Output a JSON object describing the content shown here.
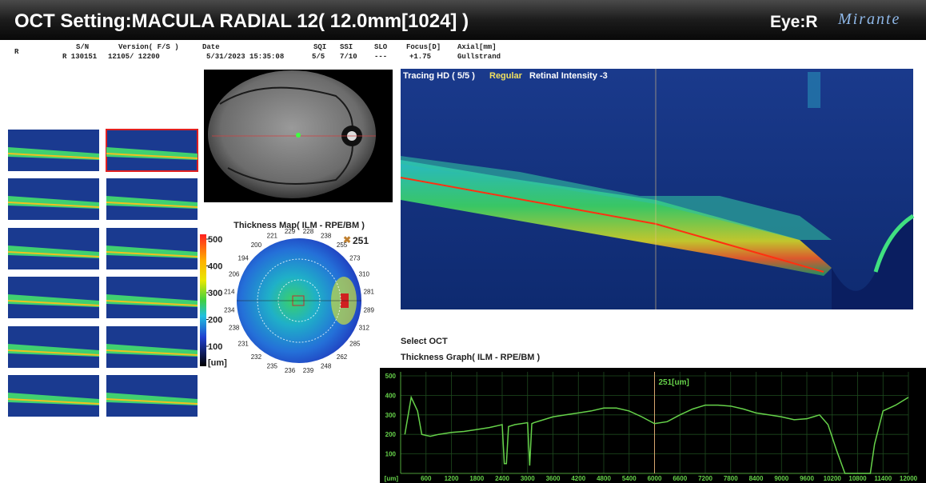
{
  "header": {
    "title": "OCT Setting:MACULA RADIAL 12( 12.0mm[1024] )",
    "eye": "Eye:R",
    "brand": "Mirante"
  },
  "info": {
    "side": "R",
    "columns": [
      {
        "header": "S/N",
        "value": "R 130151"
      },
      {
        "header": "Version( F/S )",
        "value": "12105/  12200"
      },
      {
        "header": "Date",
        "value": "5/31/2023 15:35:08"
      },
      {
        "header": "SQI",
        "value": "5/5"
      },
      {
        "header": "SSI",
        "value": "7/10"
      },
      {
        "header": "SLO",
        "value": "---"
      },
      {
        "header": "Focus[D]",
        "value": "+1.75"
      },
      {
        "header": "Axial[mm]",
        "value": "Gullstrand"
      }
    ]
  },
  "thickness_map": {
    "title": "Thickness Map( ILM - RPE/BM )",
    "center_value": 251,
    "sectors": [
      229,
      228,
      238,
      255,
      273,
      310,
      281,
      289,
      312,
      285,
      262,
      248,
      239,
      236,
      235,
      232,
      231,
      238,
      234,
      214,
      206,
      194,
      200,
      221
    ],
    "colorbar": {
      "ticks": [
        500,
        400,
        300,
        200,
        100
      ],
      "unit": "[um]"
    }
  },
  "bscan": {
    "label": "Tracing HD ( 5/5 )",
    "mode": "Regular",
    "intensity": "Retinal Intensity -3"
  },
  "select_label": "Select OCT",
  "chart_data": {
    "type": "line",
    "title": "Thickness Graph( ILM - RPE/BM )",
    "x": [
      100,
      250,
      400,
      500,
      700,
      900,
      1200,
      1500,
      1800,
      2100,
      2400,
      2450,
      2500,
      2550,
      2700,
      3000,
      3050,
      3100,
      3150,
      3300,
      3600,
      3900,
      4200,
      4500,
      4800,
      5100,
      5400,
      5700,
      6000,
      6300,
      6600,
      6900,
      7200,
      7500,
      7800,
      8100,
      8400,
      8700,
      9000,
      9300,
      9600,
      9900,
      10100,
      10300,
      10500,
      10800,
      11100,
      11200,
      11400,
      11700,
      12000
    ],
    "values": [
      200,
      390,
      320,
      200,
      190,
      200,
      210,
      215,
      225,
      235,
      250,
      50,
      50,
      240,
      250,
      260,
      40,
      255,
      260,
      270,
      290,
      300,
      310,
      320,
      335,
      335,
      320,
      290,
      255,
      265,
      300,
      330,
      350,
      350,
      345,
      330,
      310,
      300,
      290,
      275,
      280,
      300,
      250,
      120,
      0,
      0,
      0,
      150,
      320,
      350,
      390
    ],
    "color": "#66d24a",
    "xlim": [
      0,
      12000
    ],
    "ylim": [
      0,
      500
    ],
    "xticks": [
      600,
      1200,
      1800,
      2400,
      3000,
      3600,
      4200,
      4800,
      5400,
      6000,
      6600,
      7200,
      7800,
      8400,
      9000,
      9600,
      10200,
      10800,
      11400,
      12000
    ],
    "yticks": [
      100,
      200,
      300,
      400,
      500
    ],
    "x_unit": "[um]",
    "grid": true,
    "cursor": {
      "x": 6000,
      "label": "251[um]"
    }
  }
}
